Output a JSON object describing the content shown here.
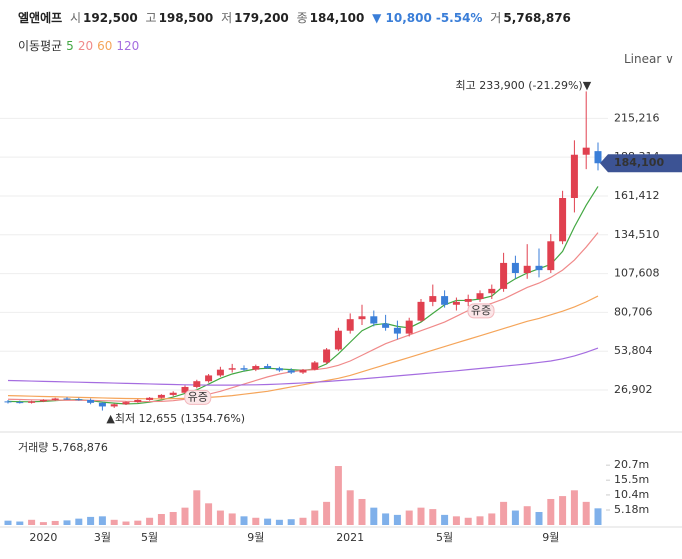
{
  "header": {
    "name": "엘앤에프",
    "open_label": "시",
    "open": "192,500",
    "high_label": "고",
    "high": "198,500",
    "low_label": "저",
    "low": "179,200",
    "close_label": "종",
    "close": "184,100",
    "change": "▼ 10,800",
    "change_pct": "-5.54%",
    "volume_label": "거",
    "volume": "5,768,876"
  },
  "scale_menu": "Linear",
  "chart_data": [
    {
      "type": "candlestick",
      "legend_title": "이동평균",
      "up_color": "#e0404f",
      "down_color": "#3a7ed8",
      "open": [
        19000,
        18500,
        18000,
        19000,
        20000,
        21000,
        20500,
        20000,
        18000,
        15500,
        17000,
        18500,
        20000,
        21500,
        23500,
        25000,
        29000,
        33000,
        37000,
        41000,
        42000,
        41000,
        43500,
        42000,
        40500,
        39000,
        41000,
        46000,
        55000,
        68000,
        76000,
        78000,
        73000,
        70000,
        66000,
        75000,
        88000,
        92000,
        86000,
        88000,
        90000,
        94000,
        97000,
        115000,
        108000,
        113000,
        110000,
        130000,
        160000,
        190000,
        192500
      ],
      "high": [
        20000,
        19500,
        19500,
        20500,
        21500,
        22000,
        21500,
        21000,
        18500,
        17500,
        19000,
        20500,
        22000,
        24000,
        26000,
        30000,
        34000,
        38000,
        43000,
        45000,
        44000,
        44500,
        45000,
        43000,
        42000,
        41500,
        47000,
        56000,
        70000,
        80000,
        86000,
        82000,
        79000,
        75000,
        77000,
        90000,
        100000,
        96000,
        91000,
        93000,
        96000,
        100000,
        122000,
        120000,
        128000,
        125000,
        135000,
        165000,
        200000,
        233900,
        198500
      ],
      "low": [
        17500,
        17500,
        17500,
        18500,
        19500,
        20000,
        19500,
        17000,
        12655,
        14500,
        16500,
        18000,
        19500,
        21000,
        22500,
        24500,
        28000,
        32000,
        36000,
        39000,
        40000,
        40000,
        41500,
        39500,
        38000,
        38000,
        40500,
        45000,
        54000,
        66000,
        72000,
        71000,
        68000,
        62000,
        64000,
        74000,
        85000,
        84000,
        82000,
        85000,
        88000,
        90000,
        95000,
        104000,
        104000,
        105000,
        108000,
        128000,
        150000,
        180000,
        179200
      ],
      "close": [
        18500,
        18000,
        19000,
        20000,
        21000,
        20500,
        20000,
        18000,
        15500,
        17000,
        18500,
        20000,
        21500,
        23500,
        25000,
        29000,
        33000,
        37000,
        41000,
        42000,
        41000,
        43500,
        42000,
        40500,
        39000,
        41000,
        46000,
        55000,
        68000,
        76000,
        78000,
        73000,
        70000,
        66000,
        75000,
        88000,
        92000,
        86000,
        88000,
        90000,
        94000,
        97000,
        115000,
        108000,
        113000,
        110000,
        130000,
        160000,
        190000,
        194900,
        184100
      ],
      "series": [
        {
          "name": "5",
          "color": "#43a843",
          "values": [
            19000,
            18800,
            18700,
            19000,
            19500,
            20000,
            20200,
            19500,
            18500,
            17800,
            17200,
            17500,
            18500,
            20000,
            22000,
            24500,
            27000,
            31000,
            35000,
            38000,
            40000,
            41500,
            42000,
            41500,
            41000,
            40500,
            41500,
            45000,
            52000,
            60000,
            68000,
            72000,
            73000,
            71000,
            70000,
            74000,
            80000,
            86000,
            89000,
            89000,
            90000,
            92000,
            99000,
            104000,
            108000,
            111000,
            114000,
            123000,
            140000,
            155000,
            168000
          ]
        },
        {
          "name": "20",
          "color": "#f08a8a",
          "values": [
            20500,
            20300,
            20100,
            20000,
            19900,
            19800,
            19800,
            19700,
            19500,
            19300,
            19000,
            18900,
            18900,
            19000,
            19500,
            20500,
            22000,
            24000,
            26000,
            28500,
            31000,
            33500,
            36000,
            38000,
            39500,
            40500,
            41000,
            42000,
            44000,
            47000,
            51000,
            55000,
            59000,
            62000,
            65000,
            68000,
            71000,
            74000,
            78000,
            82000,
            85000,
            87000,
            90000,
            94000,
            98000,
            101000,
            105000,
            110000,
            117000,
            126000,
            136000
          ]
        },
        {
          "name": "60",
          "color": "#f5a55a",
          "values": [
            23000,
            22800,
            22600,
            22400,
            22200,
            22000,
            21800,
            21600,
            21400,
            21200,
            21000,
            20900,
            20800,
            20800,
            20900,
            21100,
            21400,
            21800,
            22300,
            23000,
            24000,
            25000,
            26000,
            27500,
            29000,
            30500,
            32000,
            33500,
            35000,
            37000,
            39500,
            42000,
            44500,
            47000,
            49500,
            52000,
            54500,
            57000,
            59500,
            62000,
            64500,
            67000,
            69500,
            72000,
            74500,
            76500,
            79000,
            81500,
            84500,
            88000,
            92000
          ]
        },
        {
          "name": "120",
          "color": "#a56de0",
          "values": [
            33500,
            33300,
            33100,
            32900,
            32700,
            32500,
            32300,
            32100,
            31900,
            31700,
            31500,
            31300,
            31100,
            30900,
            30700,
            30500,
            30400,
            30300,
            30300,
            30300,
            30400,
            30500,
            30700,
            31000,
            31400,
            31800,
            32300,
            32800,
            33400,
            34000,
            34600,
            35300,
            36000,
            36700,
            37400,
            38100,
            38800,
            39500,
            40200,
            41000,
            41800,
            42600,
            43400,
            44200,
            45000,
            46000,
            47000,
            48500,
            50500,
            53000,
            56000
          ]
        }
      ],
      "ylim": [
        0,
        245000
      ],
      "yticks": [
        {
          "value": 26902,
          "label": "26,902"
        },
        {
          "value": 53804,
          "label": "53,804"
        },
        {
          "value": 80706,
          "label": "80,706"
        },
        {
          "value": 107608,
          "label": "107,608"
        },
        {
          "value": 134510,
          "label": "134,510"
        },
        {
          "value": 161412,
          "label": "161,412"
        },
        {
          "value": 188314,
          "label": "188,314"
        },
        {
          "value": 215216,
          "label": "215,216"
        }
      ],
      "grid": true,
      "high_annotation": "최고 233,900 (-21.29%)▼",
      "low_annotation": "▲최저 12,655 (1354.76%)",
      "event_labels": [
        "유증",
        "유증"
      ],
      "current_price": {
        "value": 184100,
        "label": "184,100"
      }
    },
    {
      "type": "bar",
      "title": "거래량 5,768,876",
      "categories": [
        null,
        null,
        null,
        "2020",
        null,
        null,
        null,
        null,
        "3월",
        null,
        null,
        null,
        "5월",
        null,
        null,
        null,
        null,
        null,
        null,
        null,
        null,
        "9월",
        null,
        null,
        null,
        null,
        null,
        null,
        null,
        "2021",
        null,
        null,
        null,
        null,
        null,
        null,
        null,
        "5월",
        null,
        null,
        null,
        null,
        null,
        null,
        null,
        null,
        "9월",
        null,
        null,
        null,
        null
      ],
      "values": [
        1500000,
        1200000,
        1800000,
        1000000,
        1400000,
        1600000,
        2200000,
        2800000,
        3000000,
        1800000,
        1200000,
        1500000,
        2500000,
        3800000,
        4500000,
        6000000,
        12000000,
        7500000,
        5000000,
        4000000,
        3000000,
        2500000,
        2200000,
        1800000,
        2000000,
        2500000,
        5000000,
        8000000,
        20400000,
        12000000,
        9000000,
        6000000,
        4000000,
        3500000,
        5000000,
        6000000,
        5500000,
        3500000,
        3000000,
        2500000,
        3000000,
        4000000,
        8000000,
        5000000,
        6500000,
        4500000,
        9000000,
        10000000,
        12000000,
        8000000,
        5768876
      ],
      "up_color": "#f2a0a6",
      "down_color": "#7fb0ea",
      "ylim": [
        0,
        29400000
      ],
      "yticks": [
        {
          "value": 5180000,
          "label": "5.18m"
        },
        {
          "value": 10400000,
          "label": "10.4m"
        },
        {
          "value": 15500000,
          "label": "15.5m"
        },
        {
          "value": 20700000,
          "label": "20.7m"
        }
      ]
    }
  ]
}
